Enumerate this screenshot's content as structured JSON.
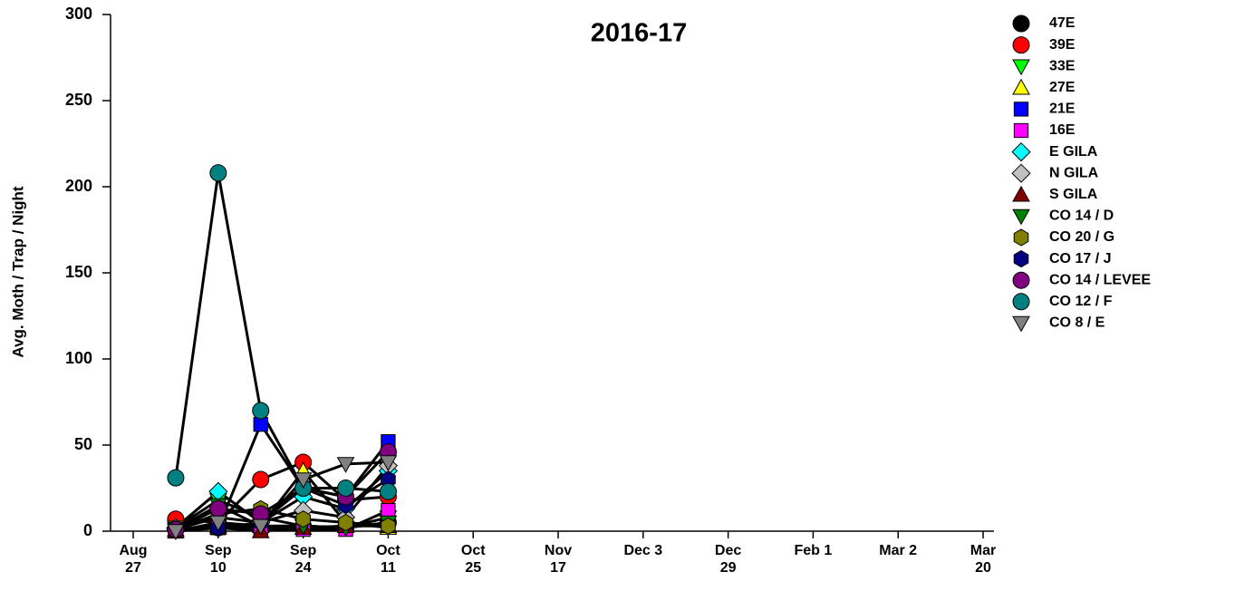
{
  "chart_data": {
    "type": "line",
    "title": "2016-17",
    "ylabel": "Avg. Moth / Trap / Night",
    "x": [
      0.5,
      1,
      1.5,
      2,
      2.5,
      3
    ],
    "xlim": [
      -0.267,
      10.128
    ],
    "xticks": [
      {
        "value": 0,
        "label": "Aug 27"
      },
      {
        "value": 1,
        "label": "Sep 10"
      },
      {
        "value": 2,
        "label": "Sep 24"
      },
      {
        "value": 3,
        "label": "Oct 11"
      },
      {
        "value": 4,
        "label": "Oct 25"
      },
      {
        "value": 5,
        "label": "Nov 17"
      },
      {
        "value": 6,
        "label": "Dec 3"
      },
      {
        "value": 7,
        "label": "Dec 29"
      },
      {
        "value": 8,
        "label": "Feb 1"
      },
      {
        "value": 9,
        "label": "Mar 2"
      },
      {
        "value": 10,
        "label": "Mar 20"
      }
    ],
    "ylim": [
      0,
      300
    ],
    "yticks": [
      0,
      50,
      100,
      150,
      200,
      250,
      300
    ],
    "line_color": "#000000",
    "legend": "right",
    "series": [
      {
        "name": "47E",
        "color": "#000000",
        "marker": "circle",
        "values": [
          1,
          2,
          2,
          3,
          2,
          5
        ]
      },
      {
        "name": "39E",
        "color": "#ff0000",
        "marker": "circle",
        "values": [
          7,
          5,
          30,
          40,
          18,
          20
        ]
      },
      {
        "name": "33E",
        "color": "#00ff00",
        "marker": "triangle-down",
        "values": [
          2,
          18,
          8,
          3,
          2,
          8
        ]
      },
      {
        "name": "27E",
        "color": "#ffff00",
        "marker": "triangle-up",
        "values": [
          1,
          3,
          3,
          35,
          5,
          2
        ]
      },
      {
        "name": "21E",
        "color": "#0000ff",
        "marker": "square",
        "values": [
          1,
          2,
          62,
          25,
          20,
          52
        ]
      },
      {
        "name": "16E",
        "color": "#ff00ff",
        "marker": "square",
        "values": [
          0,
          2,
          1,
          1,
          1,
          12
        ]
      },
      {
        "name": "E GILA",
        "color": "#00ffff",
        "marker": "diamond",
        "values": [
          2,
          23,
          5,
          20,
          13,
          35
        ]
      },
      {
        "name": "N GILA",
        "color": "#c0c0c0",
        "marker": "diamond",
        "values": [
          1,
          8,
          5,
          12,
          8,
          38
        ]
      },
      {
        "name": "S GILA",
        "color": "#800000",
        "marker": "triangle-up",
        "values": [
          0,
          2,
          0,
          2,
          3,
          3
        ]
      },
      {
        "name": "CO 14 / D",
        "color": "#008000",
        "marker": "triangle-down",
        "values": [
          1,
          15,
          3,
          3,
          2,
          5
        ]
      },
      {
        "name": "CO 20 / G",
        "color": "#808000",
        "marker": "hexagon",
        "values": [
          1,
          10,
          13,
          7,
          5,
          3
        ]
      },
      {
        "name": "CO 17 / J",
        "color": "#000080",
        "marker": "hexagon",
        "values": [
          1,
          2,
          5,
          25,
          15,
          30
        ]
      },
      {
        "name": "CO 14 / LEVEE",
        "color": "#800080",
        "marker": "circle",
        "values": [
          1,
          13,
          10,
          25,
          20,
          46
        ]
      },
      {
        "name": "CO 12 / F",
        "color": "#008080",
        "marker": "circle",
        "values": [
          31,
          208,
          70,
          25,
          25,
          23
        ]
      },
      {
        "name": "CO 8 / E",
        "color": "#808080",
        "marker": "triangle-down",
        "values": [
          0,
          5,
          3,
          30,
          39,
          40
        ]
      }
    ]
  }
}
